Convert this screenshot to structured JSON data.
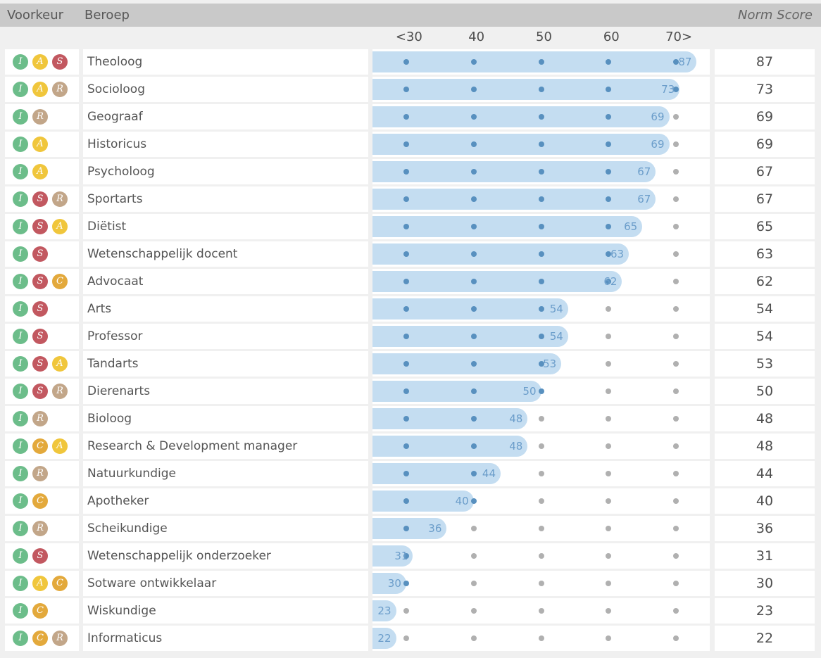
{
  "header": {
    "col_voorkeur": "Voorkeur",
    "col_beroep": "Beroep",
    "col_norm": "Norm Score"
  },
  "axis": {
    "ticks": [
      {
        "label": "<30",
        "value": 30
      },
      {
        "label": "40",
        "value": 40
      },
      {
        "label": "50",
        "value": 50
      },
      {
        "label": "60",
        "value": 60
      },
      {
        "label": "70>",
        "value": 70
      }
    ]
  },
  "colors": {
    "bar": "#c4ddf1",
    "dot_active": "#5890bf",
    "dot_inactive": "#b0b0b0",
    "bar_value_text": "#6b9dca",
    "header_bg": "#c9c9c9",
    "badge_I": "#6cbd8a",
    "badge_A": "#f0c63c",
    "badge_S": "#c25860",
    "badge_R": "#c2a689",
    "badge_C": "#e3a93c"
  },
  "rows": [
    {
      "badges": [
        "I",
        "A",
        "S"
      ],
      "beroep": "Theoloog",
      "score": 87
    },
    {
      "badges": [
        "I",
        "A",
        "R"
      ],
      "beroep": "Socioloog",
      "score": 73
    },
    {
      "badges": [
        "I",
        "R"
      ],
      "beroep": "Geograaf",
      "score": 69
    },
    {
      "badges": [
        "I",
        "A"
      ],
      "beroep": "Historicus",
      "score": 69
    },
    {
      "badges": [
        "I",
        "A"
      ],
      "beroep": "Psycholoog",
      "score": 67
    },
    {
      "badges": [
        "I",
        "S",
        "R"
      ],
      "beroep": "Sportarts",
      "score": 67
    },
    {
      "badges": [
        "I",
        "S",
        "A"
      ],
      "beroep": "Diëtist",
      "score": 65
    },
    {
      "badges": [
        "I",
        "S"
      ],
      "beroep": "Wetenschappelijk docent",
      "score": 63
    },
    {
      "badges": [
        "I",
        "S",
        "C"
      ],
      "beroep": "Advocaat",
      "score": 62
    },
    {
      "badges": [
        "I",
        "S"
      ],
      "beroep": "Arts",
      "score": 54
    },
    {
      "badges": [
        "I",
        "S"
      ],
      "beroep": "Professor",
      "score": 54
    },
    {
      "badges": [
        "I",
        "S",
        "A"
      ],
      "beroep": "Tandarts",
      "score": 53
    },
    {
      "badges": [
        "I",
        "S",
        "R"
      ],
      "beroep": "Dierenarts",
      "score": 50
    },
    {
      "badges": [
        "I",
        "R"
      ],
      "beroep": "Bioloog",
      "score": 48
    },
    {
      "badges": [
        "I",
        "C",
        "A"
      ],
      "beroep": "Research & Development manager",
      "score": 48
    },
    {
      "badges": [
        "I",
        "R"
      ],
      "beroep": "Natuurkundige",
      "score": 44
    },
    {
      "badges": [
        "I",
        "C"
      ],
      "beroep": "Apotheker",
      "score": 40
    },
    {
      "badges": [
        "I",
        "R"
      ],
      "beroep": "Scheikundige",
      "score": 36
    },
    {
      "badges": [
        "I",
        "S"
      ],
      "beroep": "Wetenschappelijk onderzoeker",
      "score": 31
    },
    {
      "badges": [
        "I",
        "A",
        "C"
      ],
      "beroep": "Sotware ontwikkelaar",
      "score": 30
    },
    {
      "badges": [
        "I",
        "C"
      ],
      "beroep": "Wiskundige",
      "score": 23
    },
    {
      "badges": [
        "I",
        "C",
        "R"
      ],
      "beroep": "Informaticus",
      "score": 22
    }
  ],
  "chart_data": {
    "type": "bar",
    "orientation": "horizontal",
    "title": "Norm Score",
    "xlabel": "Norm Score",
    "ylabel": "Beroep",
    "x_tick_labels": [
      "<30",
      "40",
      "50",
      "60",
      "70>"
    ],
    "x_tick_values": [
      30,
      40,
      50,
      60,
      70
    ],
    "xlim": [
      25,
      75
    ],
    "grid": false,
    "legend_position": "none",
    "categories": [
      "Theoloog",
      "Socioloog",
      "Geograaf",
      "Historicus",
      "Psycholoog",
      "Sportarts",
      "Diëtist",
      "Wetenschappelijk docent",
      "Advocaat",
      "Arts",
      "Professor",
      "Tandarts",
      "Dierenarts",
      "Bioloog",
      "Research & Development manager",
      "Natuurkundige",
      "Apotheker",
      "Scheikundige",
      "Wetenschappelijk onderzoeker",
      "Sotware ontwikkelaar",
      "Wiskundige",
      "Informaticus"
    ],
    "values": [
      87,
      73,
      69,
      69,
      67,
      67,
      65,
      63,
      62,
      54,
      54,
      53,
      50,
      48,
      48,
      44,
      40,
      36,
      31,
      30,
      23,
      22
    ],
    "preference_codes": [
      "IAS",
      "IAR",
      "IR",
      "IA",
      "IA",
      "ISR",
      "ISA",
      "IS",
      "ISC",
      "IS",
      "IS",
      "ISA",
      "ISR",
      "IR",
      "ICA",
      "IR",
      "IC",
      "IR",
      "IS",
      "IAC",
      "IC",
      "ICR"
    ]
  }
}
